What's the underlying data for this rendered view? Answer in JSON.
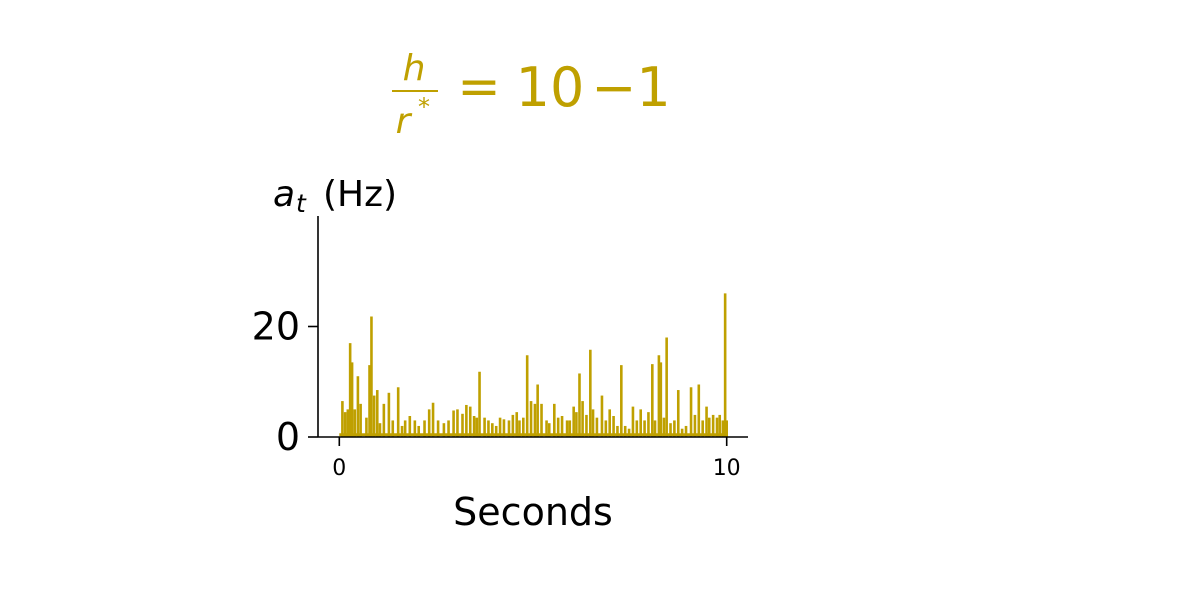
{
  "chart_data": {
    "type": "line",
    "title": {
      "numerator": "h",
      "denominator_base": "r",
      "denominator_sup": "*",
      "equals": "=",
      "base": "10",
      "exponent": "−1"
    },
    "ylabel": {
      "symbol": "a",
      "subscript": "t",
      "unit": "(Hz)"
    },
    "xlabel": "Seconds",
    "xlim": [
      -0.55,
      10.55
    ],
    "ylim": [
      0,
      40
    ],
    "x_ticks": [
      0,
      10
    ],
    "x_tick_labels": [
      "0",
      "10"
    ],
    "y_ticks": [
      0,
      20
    ],
    "y_tick_labels": [
      "0",
      "20"
    ],
    "grid": false,
    "series": [
      {
        "color": "#bfa000",
        "spikes": [
          [
            0.08,
            6.5
          ],
          [
            0.15,
            4.5
          ],
          [
            0.22,
            5.0
          ],
          [
            0.28,
            17.0
          ],
          [
            0.33,
            13.5
          ],
          [
            0.4,
            5.0
          ],
          [
            0.48,
            11.0
          ],
          [
            0.55,
            6.0
          ],
          [
            0.7,
            3.5
          ],
          [
            0.78,
            13.0
          ],
          [
            0.83,
            21.8
          ],
          [
            0.9,
            7.5
          ],
          [
            0.98,
            8.5
          ],
          [
            1.05,
            2.5
          ],
          [
            1.15,
            6.0
          ],
          [
            1.28,
            8.0
          ],
          [
            1.38,
            3.0
          ],
          [
            1.52,
            9.0
          ],
          [
            1.62,
            2.0
          ],
          [
            1.7,
            3.0
          ],
          [
            1.82,
            3.8
          ],
          [
            1.95,
            3.0
          ],
          [
            2.05,
            2.0
          ],
          [
            2.2,
            3.0
          ],
          [
            2.32,
            5.0
          ],
          [
            2.42,
            6.2
          ],
          [
            2.55,
            3.0
          ],
          [
            2.7,
            2.5
          ],
          [
            2.82,
            3.0
          ],
          [
            2.95,
            4.8
          ],
          [
            3.05,
            5.0
          ],
          [
            3.18,
            4.2
          ],
          [
            3.28,
            5.8
          ],
          [
            3.38,
            5.5
          ],
          [
            3.48,
            3.8
          ],
          [
            3.55,
            3.5
          ],
          [
            3.62,
            11.8
          ],
          [
            3.75,
            3.5
          ],
          [
            3.85,
            3.0
          ],
          [
            3.95,
            2.5
          ],
          [
            4.05,
            2.0
          ],
          [
            4.15,
            3.5
          ],
          [
            4.25,
            3.2
          ],
          [
            4.38,
            3.0
          ],
          [
            4.48,
            4.0
          ],
          [
            4.58,
            4.5
          ],
          [
            4.65,
            3.0
          ],
          [
            4.75,
            3.5
          ],
          [
            4.85,
            14.8
          ],
          [
            4.95,
            6.5
          ],
          [
            5.05,
            6.0
          ],
          [
            5.12,
            9.5
          ],
          [
            5.22,
            6.0
          ],
          [
            5.35,
            3.0
          ],
          [
            5.42,
            2.5
          ],
          [
            5.55,
            6.0
          ],
          [
            5.65,
            3.5
          ],
          [
            5.75,
            3.8
          ],
          [
            5.88,
            3.0
          ],
          [
            5.95,
            3.0
          ],
          [
            6.05,
            5.5
          ],
          [
            6.12,
            4.5
          ],
          [
            6.2,
            11.5
          ],
          [
            6.28,
            6.5
          ],
          [
            6.38,
            4.0
          ],
          [
            6.48,
            15.8
          ],
          [
            6.55,
            5.0
          ],
          [
            6.65,
            3.5
          ],
          [
            6.78,
            7.5
          ],
          [
            6.88,
            3.0
          ],
          [
            6.98,
            5.0
          ],
          [
            7.08,
            3.8
          ],
          [
            7.18,
            2.0
          ],
          [
            7.28,
            13.0
          ],
          [
            7.38,
            2.0
          ],
          [
            7.48,
            1.5
          ],
          [
            7.58,
            5.5
          ],
          [
            7.68,
            3.0
          ],
          [
            7.78,
            5.0
          ],
          [
            7.88,
            3.0
          ],
          [
            7.98,
            4.5
          ],
          [
            8.08,
            13.2
          ],
          [
            8.15,
            3.0
          ],
          [
            8.25,
            14.8
          ],
          [
            8.3,
            13.5
          ],
          [
            8.38,
            3.5
          ],
          [
            8.45,
            18.0
          ],
          [
            8.55,
            2.5
          ],
          [
            8.65,
            3.0
          ],
          [
            8.75,
            8.5
          ],
          [
            8.85,
            1.5
          ],
          [
            8.95,
            2.0
          ],
          [
            9.08,
            9.0
          ],
          [
            9.18,
            4.0
          ],
          [
            9.28,
            9.5
          ],
          [
            9.38,
            3.0
          ],
          [
            9.48,
            5.5
          ],
          [
            9.55,
            3.5
          ],
          [
            9.65,
            4.0
          ],
          [
            9.75,
            3.5
          ],
          [
            9.82,
            4.0
          ],
          [
            9.9,
            3.0
          ],
          [
            9.96,
            26.0
          ],
          [
            10.0,
            3.0
          ]
        ]
      }
    ]
  },
  "colors": {
    "accent": "#bfa000",
    "axis": "#000000"
  }
}
